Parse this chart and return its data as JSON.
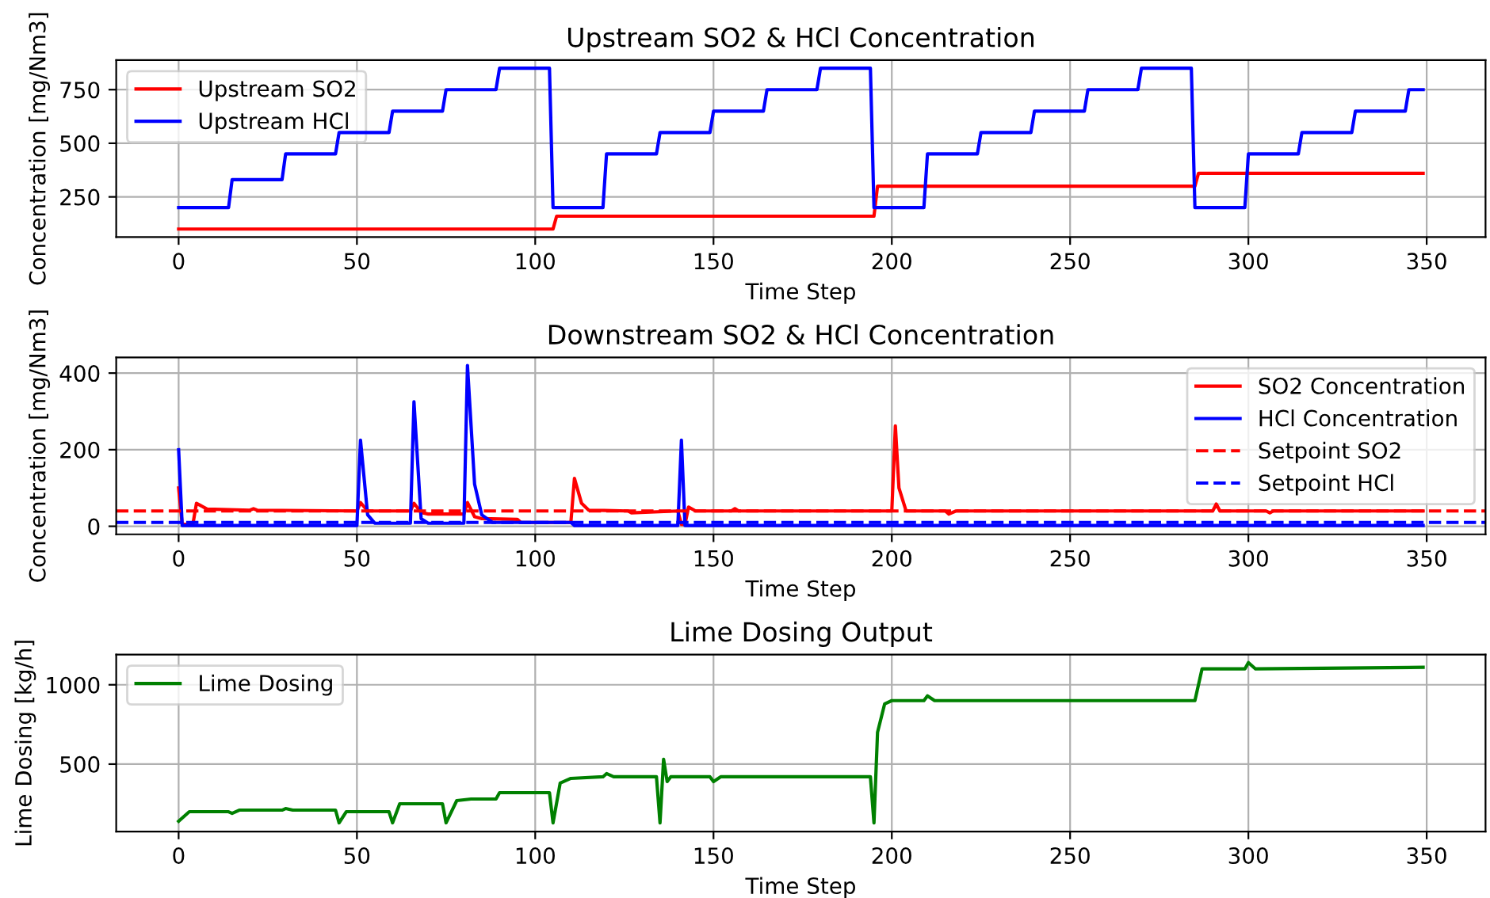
{
  "chart_data": [
    {
      "type": "line",
      "title": "Upstream SO2 & HCl Concentration",
      "xlabel": "Time Step",
      "ylabel": "Concentration [mg/Nm3]",
      "xlim": [
        -17.5,
        366.5
      ],
      "xticks": [
        0,
        50,
        100,
        150,
        200,
        250,
        300,
        350
      ],
      "ylim": [
        62.5,
        887.5
      ],
      "yticks": [
        250,
        500,
        750
      ],
      "grid": true,
      "legend": "top left",
      "series": [
        {
          "name": "Upstream SO2",
          "color": "#ff0000",
          "x": [
            0,
            105,
            106,
            195,
            196,
            285,
            286,
            349
          ],
          "values": [
            100,
            100,
            160,
            160,
            300,
            300,
            360,
            360
          ]
        },
        {
          "name": "Upstream HCl",
          "color": "#0000ff",
          "x": [
            0,
            14,
            15,
            29,
            30,
            44,
            45,
            59,
            60,
            74,
            75,
            89,
            90,
            104,
            105,
            119,
            120,
            134,
            135,
            149,
            150,
            164,
            165,
            179,
            180,
            194,
            195,
            209,
            210,
            224,
            225,
            239,
            240,
            254,
            255,
            269,
            270,
            284,
            285,
            299,
            300,
            314,
            315,
            329,
            330,
            344,
            345,
            349
          ],
          "values": [
            200,
            200,
            330,
            330,
            450,
            450,
            550,
            550,
            650,
            650,
            750,
            750,
            850,
            850,
            200,
            200,
            450,
            450,
            550,
            550,
            650,
            650,
            750,
            750,
            850,
            850,
            200,
            200,
            450,
            450,
            550,
            550,
            650,
            650,
            750,
            750,
            850,
            850,
            200,
            200,
            450,
            450,
            550,
            550,
            650,
            650,
            750,
            750
          ]
        }
      ]
    },
    {
      "type": "line",
      "title": "Downstream SO2 & HCl Concentration",
      "xlabel": "Time Step",
      "ylabel": "Concentration [mg/Nm3]",
      "xlim": [
        -17.5,
        366.5
      ],
      "xticks": [
        0,
        50,
        100,
        150,
        200,
        250,
        300,
        350
      ],
      "ylim": [
        -21,
        441
      ],
      "yticks": [
        0,
        200,
        400
      ],
      "grid": true,
      "legend": "top right",
      "series": [
        {
          "name": "SO2 Concentration",
          "color": "#ff0000",
          "x": [
            0,
            1,
            4,
            5,
            8,
            20,
            21,
            22,
            50,
            51,
            53,
            65,
            66,
            68,
            70,
            80,
            81,
            83,
            85,
            95,
            96,
            110,
            111,
            113,
            115,
            126,
            127,
            140,
            141,
            142,
            143,
            145,
            155,
            156,
            157,
            200,
            201,
            202,
            204,
            215,
            216,
            218,
            290,
            291,
            292,
            305,
            306,
            307,
            349
          ],
          "values": [
            100,
            5,
            5,
            60,
            45,
            42,
            46,
            42,
            40,
            62,
            40,
            40,
            60,
            36,
            32,
            32,
            62,
            25,
            20,
            18,
            10,
            10,
            125,
            60,
            42,
            40,
            35,
            40,
            5,
            5,
            50,
            40,
            40,
            46,
            40,
            40,
            262,
            100,
            40,
            40,
            32,
            40,
            40,
            58,
            40,
            40,
            35,
            40,
            40
          ]
        },
        {
          "name": "HCl Concentration",
          "color": "#0000ff",
          "x": [
            0,
            1,
            50,
            51,
            53,
            55,
            65,
            66,
            68,
            70,
            80,
            81,
            83,
            85,
            88,
            110,
            111,
            140,
            141,
            142,
            349
          ],
          "values": [
            200,
            2,
            2,
            225,
            30,
            8,
            8,
            325,
            20,
            8,
            8,
            420,
            110,
            30,
            10,
            10,
            2,
            2,
            225,
            2,
            2
          ]
        }
      ],
      "ref_lines": [
        {
          "axis": "y",
          "value": 40,
          "label": "Setpoint SO2",
          "color": "#ff0000",
          "line_style": "dashed"
        },
        {
          "axis": "y",
          "value": 10,
          "label": "Setpoint HCl",
          "color": "#0000ff",
          "line_style": "dashed"
        }
      ]
    },
    {
      "type": "line",
      "title": "Lime Dosing Output",
      "xlabel": "Time Step",
      "ylabel": "Lime Dosing [kg/h]",
      "xlim": [
        -17.5,
        366.5
      ],
      "xticks": [
        0,
        50,
        100,
        150,
        200,
        250,
        300,
        350
      ],
      "ylim": [
        75,
        1190
      ],
      "yticks": [
        500,
        1000
      ],
      "grid": true,
      "legend": "top left",
      "series": [
        {
          "name": "Lime Dosing",
          "color": "#008000",
          "x": [
            0,
            3,
            14,
            15,
            17,
            29,
            30,
            32,
            44,
            45,
            47,
            59,
            60,
            62,
            74,
            75,
            78,
            82,
            89,
            90,
            104,
            105,
            107,
            110,
            119,
            120,
            122,
            134,
            135,
            136,
            137,
            138,
            149,
            150,
            152,
            194,
            195,
            196,
            198,
            200,
            209,
            210,
            212,
            284,
            285,
            287,
            299,
            300,
            302,
            349
          ],
          "values": [
            140,
            200,
            200,
            190,
            210,
            210,
            220,
            210,
            210,
            130,
            200,
            200,
            130,
            250,
            250,
            130,
            270,
            280,
            280,
            320,
            320,
            130,
            380,
            410,
            420,
            440,
            420,
            420,
            130,
            530,
            390,
            420,
            420,
            390,
            420,
            420,
            130,
            700,
            880,
            900,
            900,
            930,
            900,
            900,
            900,
            1100,
            1100,
            1140,
            1100,
            1110
          ]
        }
      ]
    }
  ]
}
